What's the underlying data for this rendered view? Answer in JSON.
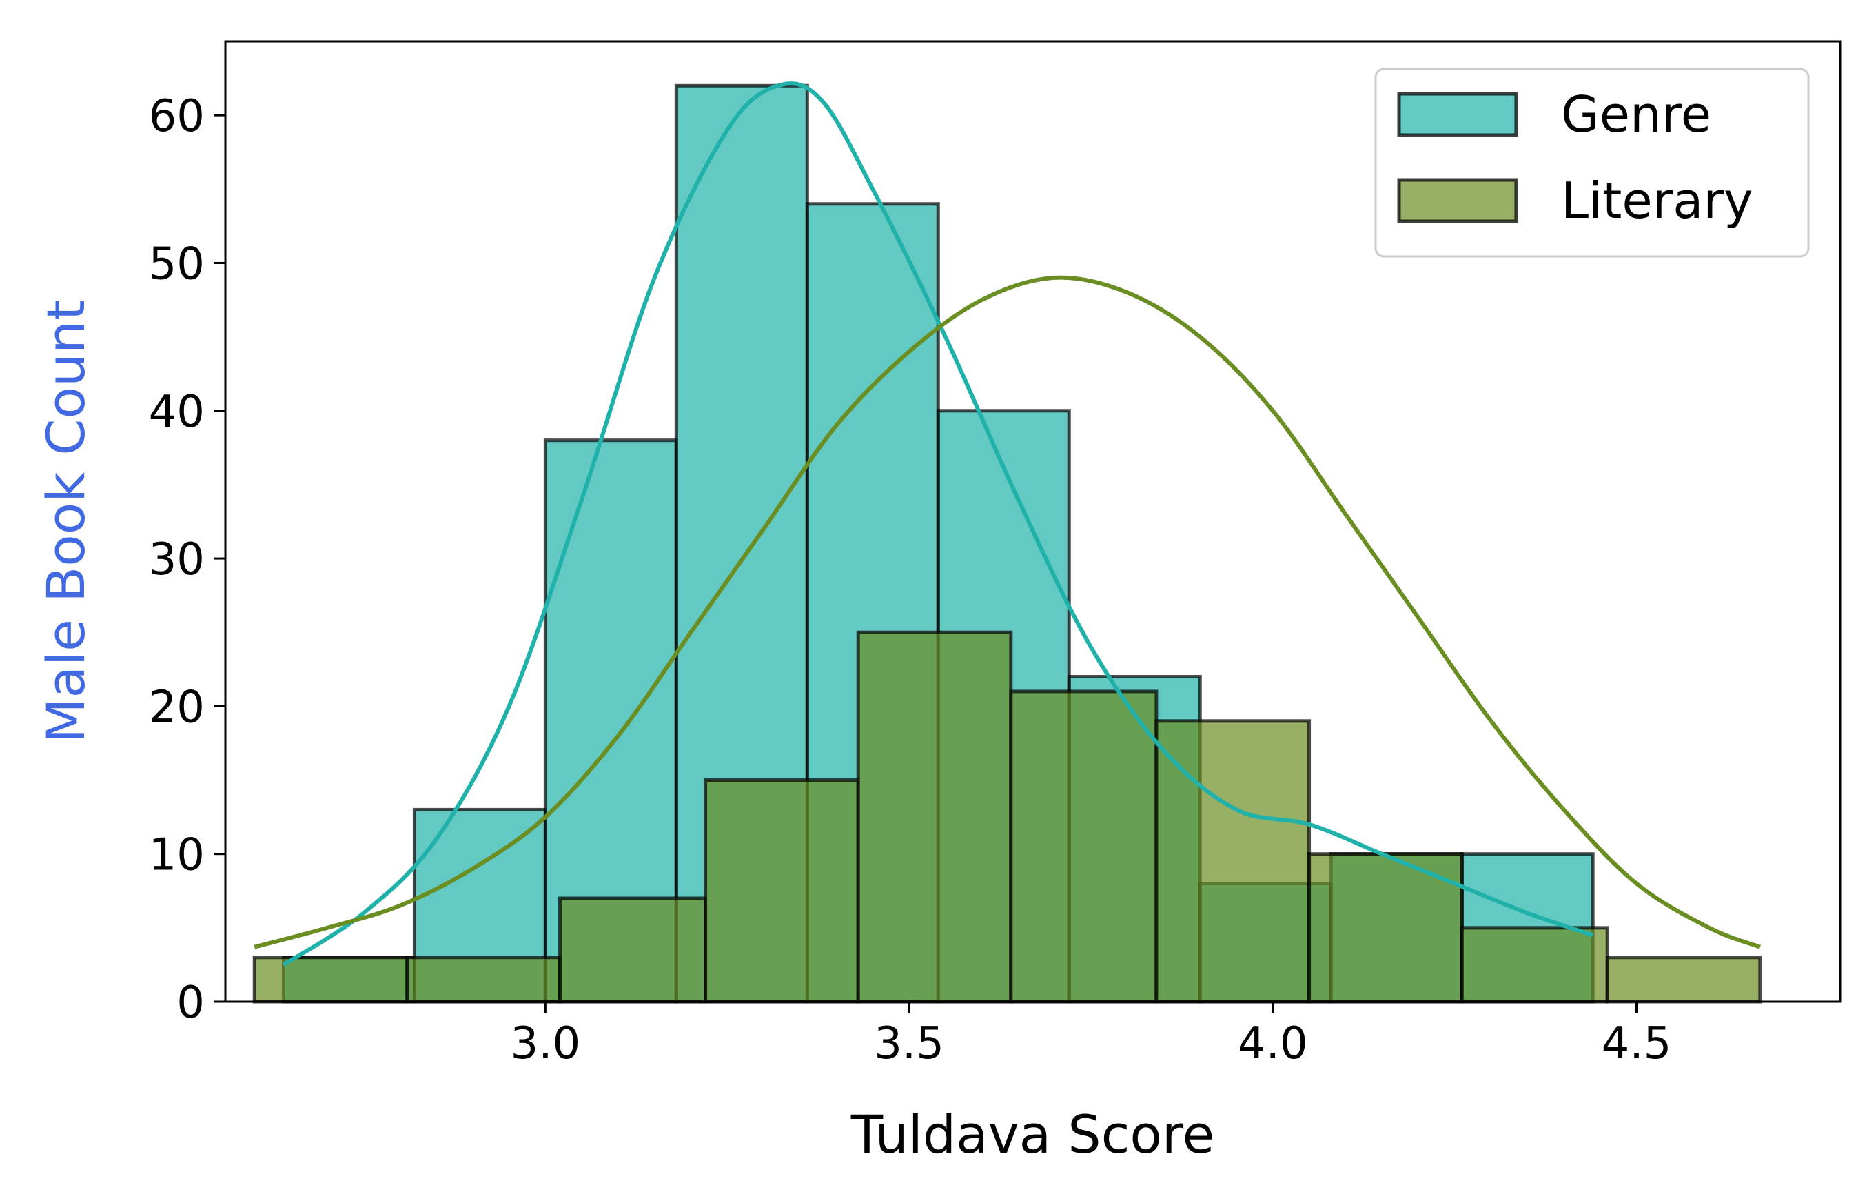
{
  "chart_data": {
    "type": "bar",
    "title": "",
    "xlabel": "Tuldava Score",
    "ylabel": "Male Book Count",
    "xlim": [
      2.56,
      4.78
    ],
    "ylim": [
      0,
      65
    ],
    "xticks": [
      3.0,
      3.5,
      4.0,
      4.5
    ],
    "xtick_labels": [
      "3.0",
      "3.5",
      "4.0",
      "4.5"
    ],
    "yticks": [
      0,
      10,
      20,
      30,
      40,
      50,
      60
    ],
    "ytick_labels": [
      "0",
      "10",
      "20",
      "30",
      "40",
      "50",
      "60"
    ],
    "grid": false,
    "legend_position": "top-right",
    "colors": {
      "genre_fill": "#20b2aa",
      "genre_line": "#20b2aa",
      "literary_fill": "#6b8e23",
      "literary_line": "#6b8e23",
      "edge": "#000000",
      "ylabel": "#4169e1"
    },
    "series": [
      {
        "name": "Genre",
        "bins": [
          {
            "x0": 2.64,
            "x1": 2.82,
            "count": 3
          },
          {
            "x0": 2.82,
            "x1": 3.0,
            "count": 13
          },
          {
            "x0": 3.0,
            "x1": 3.18,
            "count": 38
          },
          {
            "x0": 3.18,
            "x1": 3.36,
            "count": 62
          },
          {
            "x0": 3.36,
            "x1": 3.54,
            "count": 54
          },
          {
            "x0": 3.54,
            "x1": 3.72,
            "count": 40
          },
          {
            "x0": 3.72,
            "x1": 3.9,
            "count": 22
          },
          {
            "x0": 3.9,
            "x1": 4.08,
            "count": 8
          },
          {
            "x0": 4.08,
            "x1": 4.26,
            "count": 10
          },
          {
            "x0": 4.26,
            "x1": 4.44,
            "count": 10
          }
        ],
        "kde": [
          [
            2.64,
            2.5
          ],
          [
            2.75,
            6
          ],
          [
            2.85,
            11
          ],
          [
            2.95,
            20
          ],
          [
            3.05,
            34
          ],
          [
            3.15,
            49
          ],
          [
            3.25,
            59
          ],
          [
            3.32,
            62
          ],
          [
            3.38,
            61
          ],
          [
            3.45,
            55
          ],
          [
            3.55,
            45
          ],
          [
            3.65,
            34
          ],
          [
            3.75,
            24
          ],
          [
            3.85,
            17
          ],
          [
            3.95,
            13
          ],
          [
            4.05,
            12
          ],
          [
            4.15,
            10
          ],
          [
            4.25,
            8
          ],
          [
            4.35,
            6
          ],
          [
            4.44,
            4.5
          ]
        ]
      },
      {
        "name": "Literary",
        "bins": [
          {
            "x0": 2.6,
            "x1": 2.81,
            "count": 3
          },
          {
            "x0": 2.81,
            "x1": 3.02,
            "count": 3
          },
          {
            "x0": 3.02,
            "x1": 3.22,
            "count": 7
          },
          {
            "x0": 3.22,
            "x1": 3.43,
            "count": 15
          },
          {
            "x0": 3.43,
            "x1": 3.64,
            "count": 25
          },
          {
            "x0": 3.64,
            "x1": 3.84,
            "count": 21
          },
          {
            "x0": 3.84,
            "x1": 4.05,
            "count": 19
          },
          {
            "x0": 4.05,
            "x1": 4.26,
            "count": 10
          },
          {
            "x0": 4.26,
            "x1": 4.46,
            "count": 5
          },
          {
            "x0": 4.46,
            "x1": 4.67,
            "count": 3
          }
        ],
        "kde": [
          [
            2.6,
            3.7
          ],
          [
            2.7,
            5
          ],
          [
            2.8,
            6.5
          ],
          [
            2.9,
            9
          ],
          [
            3.0,
            12.5
          ],
          [
            3.1,
            18
          ],
          [
            3.2,
            25
          ],
          [
            3.3,
            32
          ],
          [
            3.4,
            39
          ],
          [
            3.5,
            44
          ],
          [
            3.6,
            47.5
          ],
          [
            3.7,
            49
          ],
          [
            3.8,
            48
          ],
          [
            3.9,
            45
          ],
          [
            4.0,
            40
          ],
          [
            4.1,
            33
          ],
          [
            4.2,
            26
          ],
          [
            4.3,
            19
          ],
          [
            4.4,
            13
          ],
          [
            4.5,
            8
          ],
          [
            4.6,
            5
          ],
          [
            4.67,
            3.7
          ]
        ]
      }
    ]
  }
}
